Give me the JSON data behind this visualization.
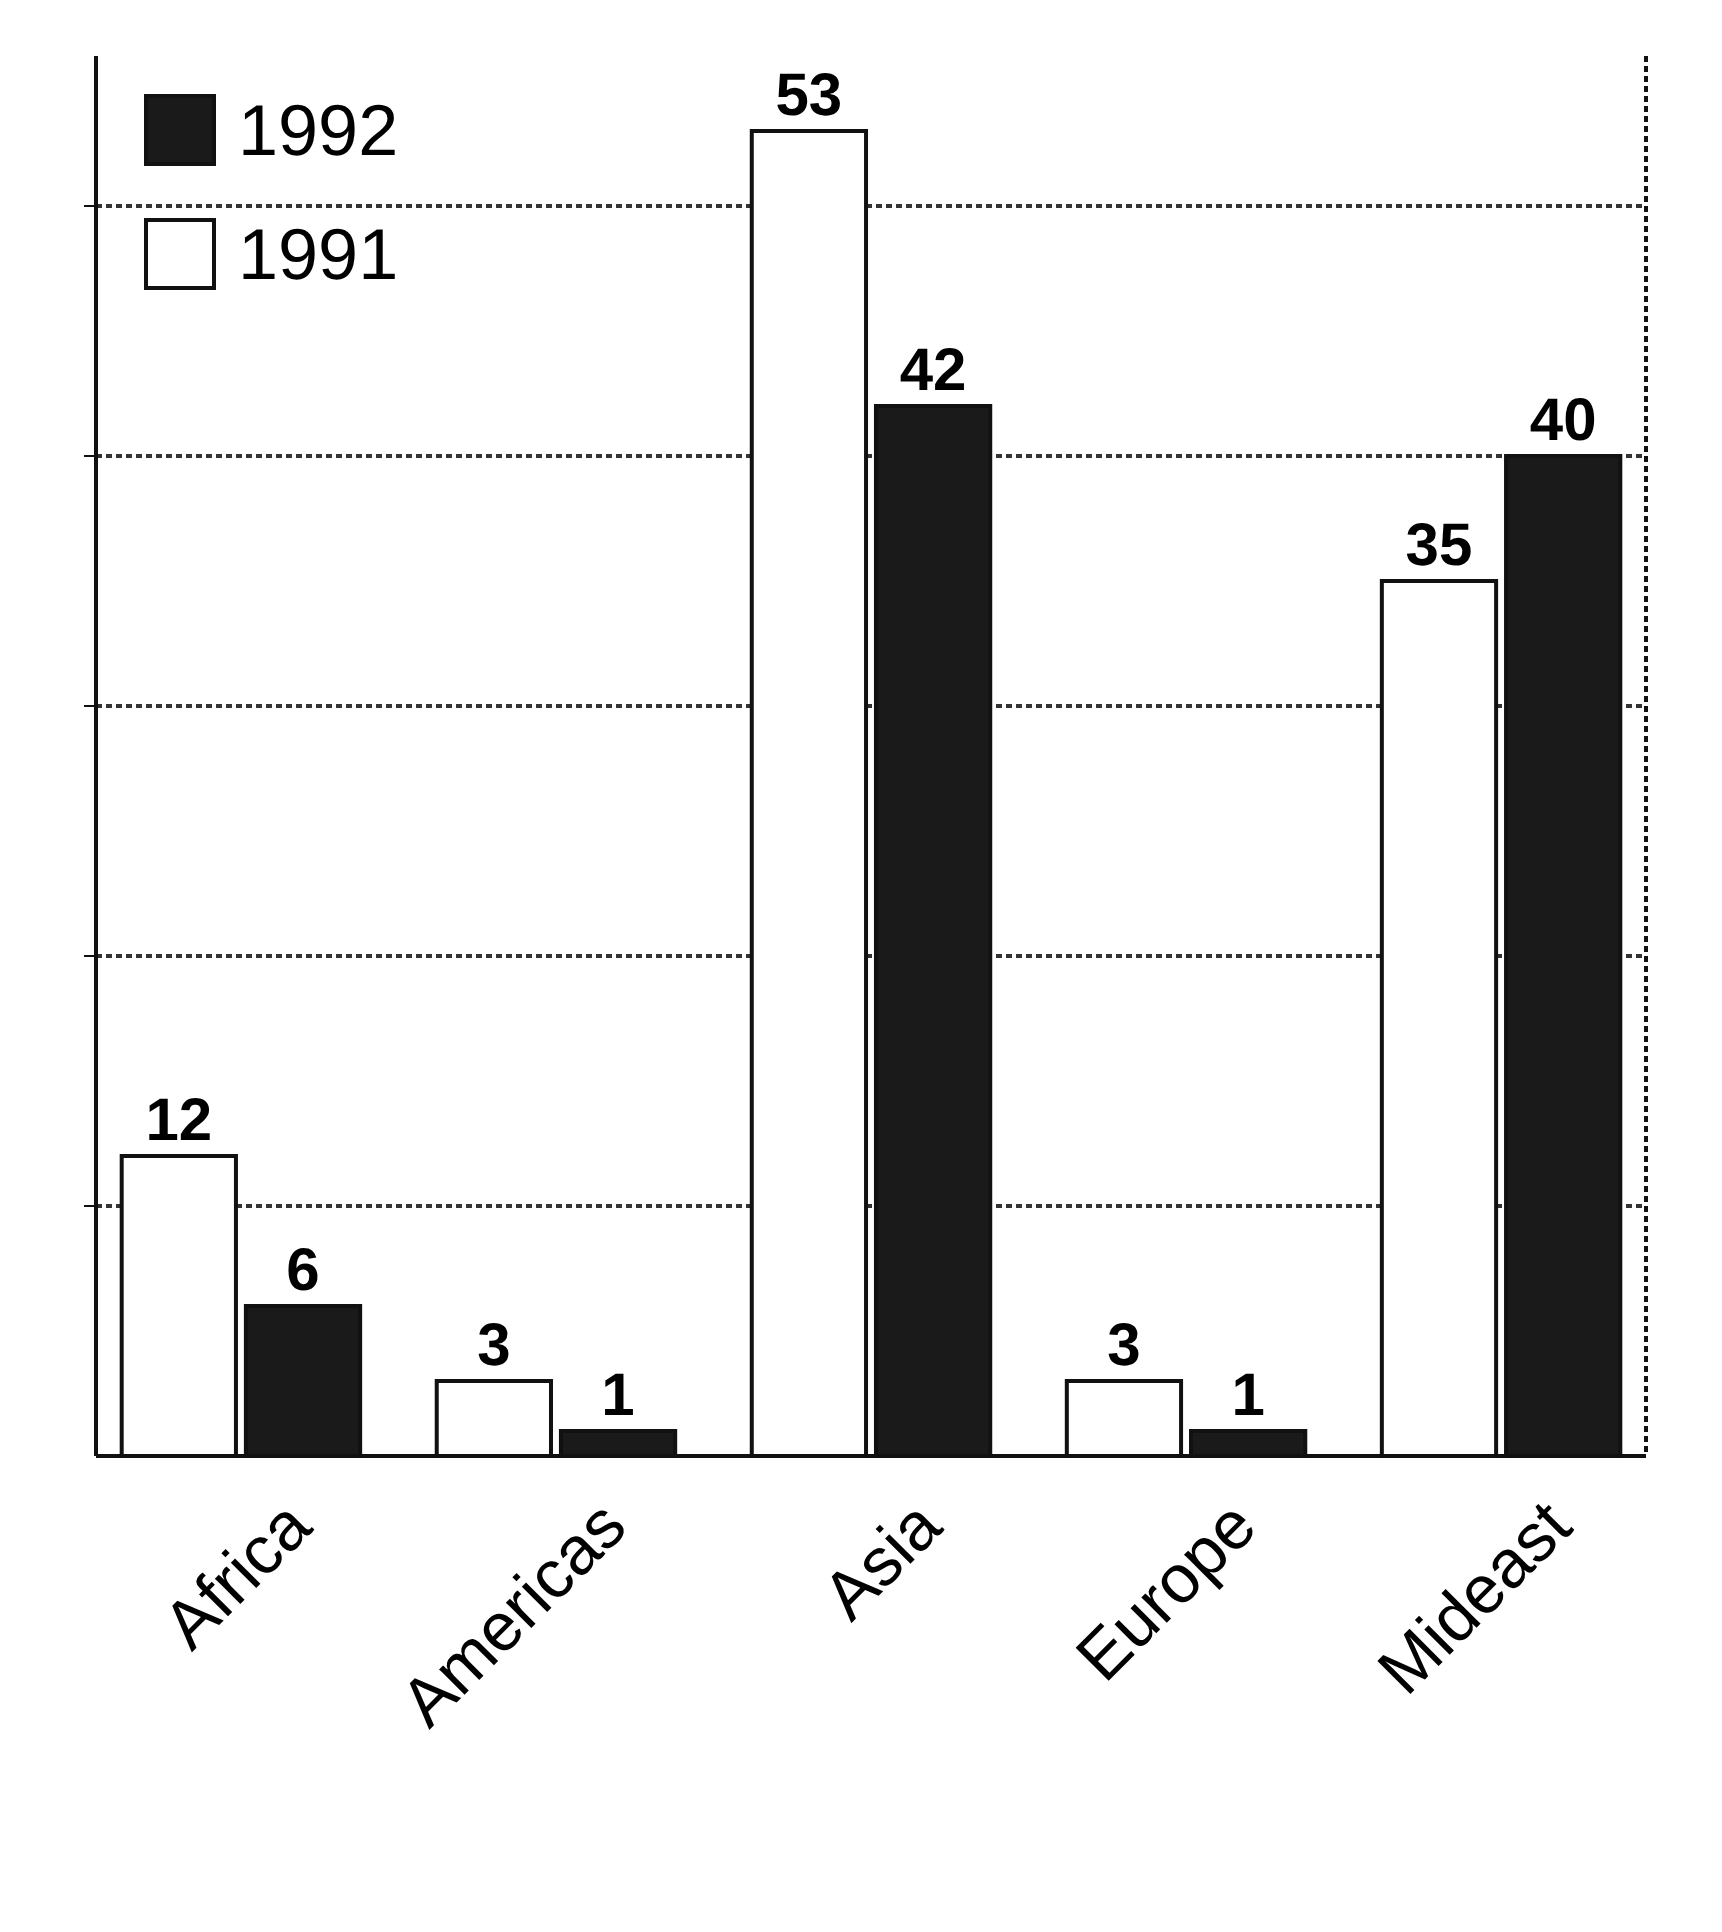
{
  "chart_data": {
    "type": "bar",
    "categories": [
      "Africa",
      "Americas",
      "Asia",
      "Europe",
      "Mideast"
    ],
    "series": [
      {
        "name": "1991",
        "color": "#ffffff",
        "values": [
          12,
          3,
          53,
          3,
          35
        ]
      },
      {
        "name": "1992",
        "color": "#1a1a1a",
        "values": [
          6,
          1,
          42,
          1,
          40
        ]
      }
    ],
    "ylim": [
      0,
      56
    ],
    "yticks": [
      {
        "value": 10,
        "label": null
      },
      {
        "value": 20,
        "label": null
      },
      {
        "value": 30,
        "label": null
      },
      {
        "value": 40,
        "label": null
      },
      {
        "value": 50,
        "label": null
      }
    ],
    "tick_labels": "x",
    "grid": "y",
    "data_labels": true,
    "legend": "top left"
  }
}
